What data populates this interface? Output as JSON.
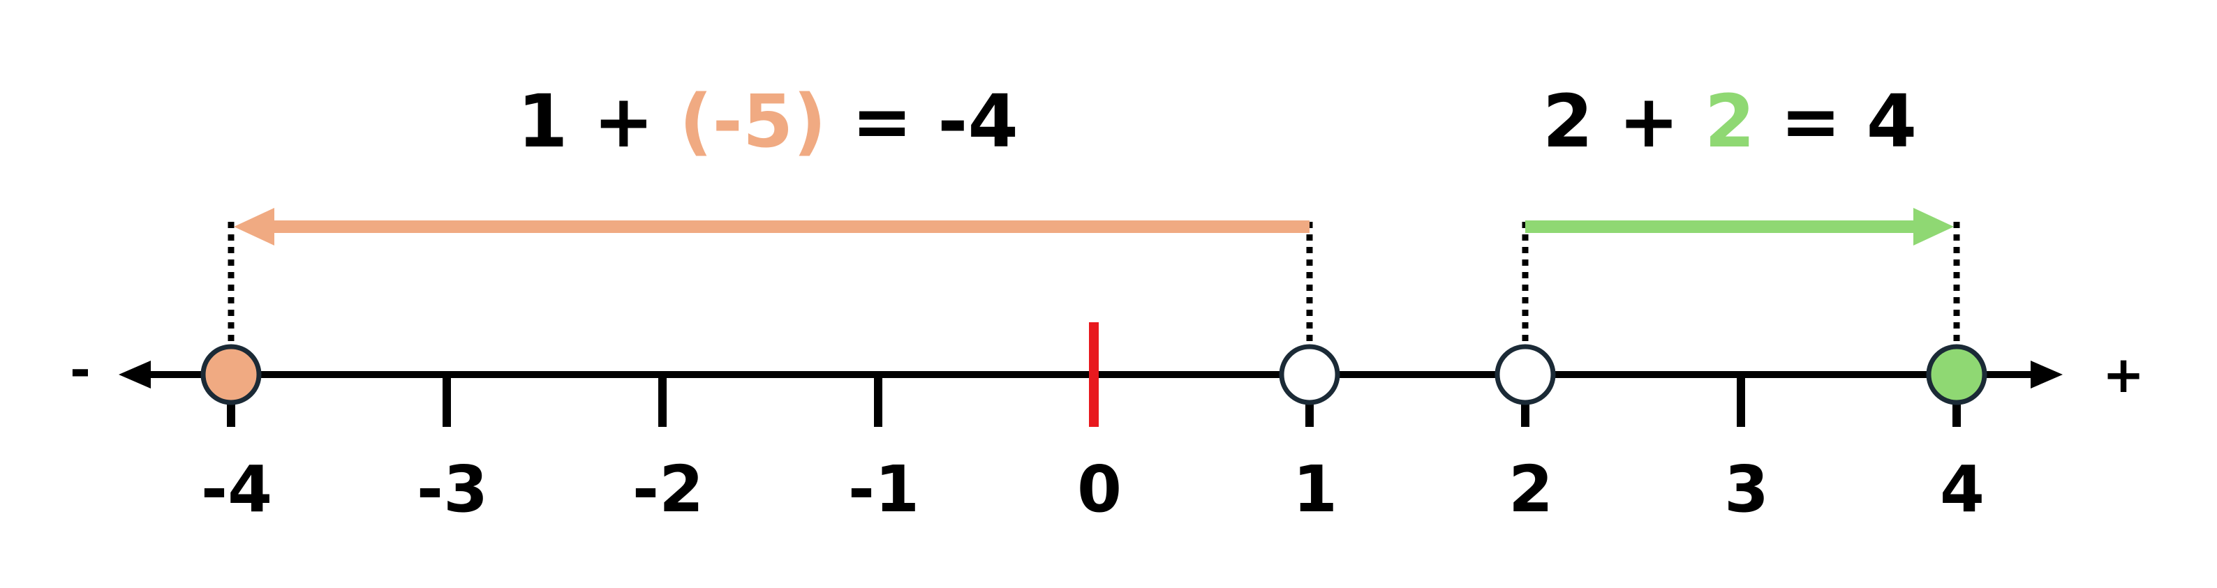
{
  "number_line": {
    "min": -4,
    "max": 4,
    "tick_labels": [
      "-4",
      "-3",
      "-2",
      "-1",
      "0",
      "1",
      "2",
      "3",
      "4"
    ],
    "negative_sign": "-",
    "positive_sign": "+",
    "zero_marker_color": "#e8191e",
    "line_color": "#000000"
  },
  "examples": [
    {
      "start": 1,
      "change": -5,
      "end": -4,
      "color": "#f0aa82",
      "equation": {
        "a": "1",
        "op": "+",
        "paren_open": "(",
        "b": "-5",
        "paren_close": ")",
        "eq": "=",
        "result": "-4"
      }
    },
    {
      "start": 2,
      "change": 2,
      "end": 4,
      "color": "#8fd873",
      "equation": {
        "a": "2",
        "op": "+",
        "paren_open": "",
        "b": "2",
        "paren_close": "",
        "eq": "=",
        "result": "4"
      }
    }
  ]
}
